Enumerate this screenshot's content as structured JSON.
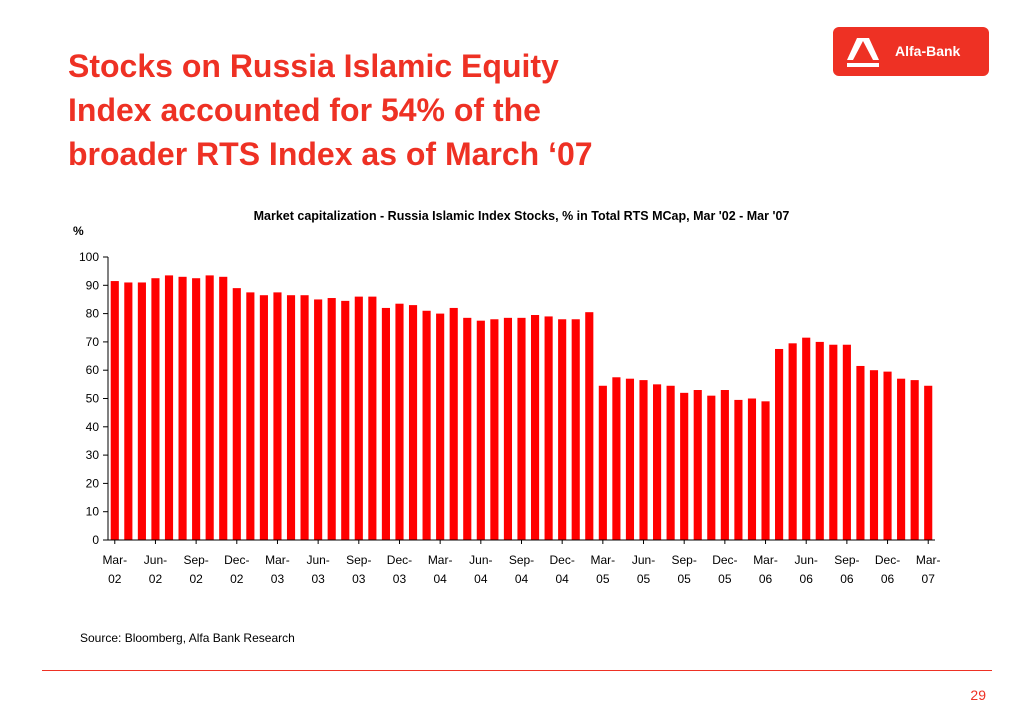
{
  "slide": {
    "title_lines": [
      "Stocks on Russia Islamic Equity",
      "Index accounted for 54% of the",
      "broader RTS Index as of March ‘07"
    ],
    "source": "Source: Bloomberg, Alfa Bank Research",
    "page_number": "29"
  },
  "logo": {
    "text": "Alfa-Bank",
    "color": "#ee3124"
  },
  "colors": {
    "accent": "#ee3124",
    "bar": "#ff0000"
  },
  "chart_data": {
    "type": "bar",
    "title": "Market capitalization - Russia Islamic Index Stocks, % in Total RTS MCap, Mar '02 - Mar '07",
    "xlabel": "",
    "ylabel": "%",
    "ylim": [
      0,
      100
    ],
    "yticks": [
      0,
      10,
      20,
      30,
      40,
      50,
      60,
      70,
      80,
      90,
      100
    ],
    "grid": false,
    "legend": "none",
    "x_tick_labels": [
      [
        "Mar-",
        "02"
      ],
      [
        "Jun-",
        "02"
      ],
      [
        "Sep-",
        "02"
      ],
      [
        "Dec-",
        "02"
      ],
      [
        "Mar-",
        "03"
      ],
      [
        "Jun-",
        "03"
      ],
      [
        "Sep-",
        "03"
      ],
      [
        "Dec-",
        "03"
      ],
      [
        "Mar-",
        "04"
      ],
      [
        "Jun-",
        "04"
      ],
      [
        "Sep-",
        "04"
      ],
      [
        "Dec-",
        "04"
      ],
      [
        "Mar-",
        "05"
      ],
      [
        "Jun-",
        "05"
      ],
      [
        "Sep-",
        "05"
      ],
      [
        "Dec-",
        "05"
      ],
      [
        "Mar-",
        "06"
      ],
      [
        "Jun-",
        "06"
      ],
      [
        "Sep-",
        "06"
      ],
      [
        "Dec-",
        "06"
      ],
      [
        "Mar-",
        "07"
      ]
    ],
    "categories": [
      "Mar-02",
      "Apr-02",
      "May-02",
      "Jun-02",
      "Jul-02",
      "Aug-02",
      "Sep-02",
      "Oct-02",
      "Nov-02",
      "Dec-02",
      "Jan-03",
      "Feb-03",
      "Mar-03",
      "Apr-03",
      "May-03",
      "Jun-03",
      "Jul-03",
      "Aug-03",
      "Sep-03",
      "Oct-03",
      "Nov-03",
      "Dec-03",
      "Jan-04",
      "Feb-04",
      "Mar-04",
      "Apr-04",
      "May-04",
      "Jun-04",
      "Jul-04",
      "Aug-04",
      "Sep-04",
      "Oct-04",
      "Nov-04",
      "Dec-04",
      "Jan-05",
      "Feb-05",
      "Mar-05",
      "Apr-05",
      "May-05",
      "Jun-05",
      "Jul-05",
      "Aug-05",
      "Sep-05",
      "Oct-05",
      "Nov-05",
      "Dec-05",
      "Jan-06",
      "Feb-06",
      "Mar-06",
      "Apr-06",
      "May-06",
      "Jun-06",
      "Jul-06",
      "Aug-06",
      "Sep-06",
      "Oct-06",
      "Nov-06",
      "Dec-06",
      "Jan-07",
      "Feb-07",
      "Mar-07"
    ],
    "values": [
      91.5,
      91,
      91,
      92.5,
      93.5,
      93,
      92.5,
      93.5,
      93,
      89,
      87.5,
      86.5,
      87.5,
      86.5,
      86.5,
      85,
      85.5,
      84.5,
      86,
      86,
      82,
      83.5,
      83,
      81,
      80,
      82,
      78.5,
      77.5,
      78,
      78.5,
      78.5,
      79.5,
      79,
      78,
      78,
      80.5,
      54.5,
      57.5,
      57,
      56.5,
      55,
      54.5,
      52,
      53,
      51,
      53,
      49.5,
      50,
      49,
      67.5,
      69.5,
      71.5,
      70,
      69,
      69,
      61.5,
      60,
      59.5,
      57,
      56.5,
      54.5
    ]
  }
}
